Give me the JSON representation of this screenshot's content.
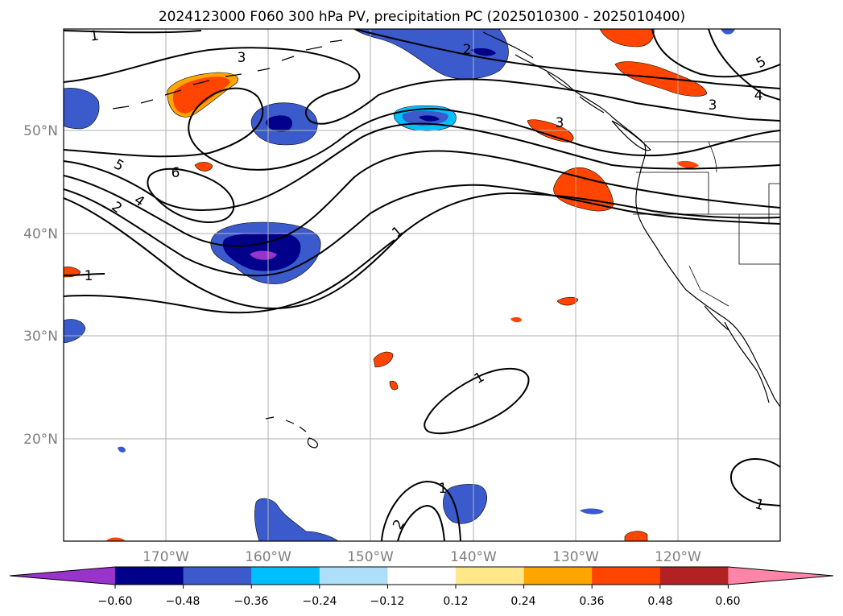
{
  "title": "2024123000 F060 300 hPa PV, precipitation PC (2025010300 - 2025010400)",
  "map": {
    "lon_labels": [
      "170°W",
      "160°W",
      "150°W",
      "140°W",
      "130°W",
      "120°W"
    ],
    "lat_labels": [
      "50°N",
      "40°N",
      "30°N",
      "20°N"
    ],
    "contour_labels": [
      "1",
      "3",
      "2",
      "5",
      "4",
      "3",
      "3",
      "5",
      "6",
      "4",
      "2",
      "1",
      "1",
      "1",
      "1",
      "2",
      "1"
    ],
    "colors": {
      "pv_contour": "#000000",
      "coast": "#000000",
      "grid": "#b0b0b0"
    }
  },
  "colorbar": {
    "colors": [
      "#9933cc",
      "#00008b",
      "#3b5bcc",
      "#00bfff",
      "#ade0f8",
      "#ffffff",
      "#ffe88a",
      "#ffa500",
      "#ff4500",
      "#b22222",
      "#ff85a8"
    ],
    "tick_labels": [
      "−0.60",
      "−0.48",
      "−0.36",
      "−0.24",
      "−0.12",
      "0.12",
      "0.24",
      "0.36",
      "0.48",
      "0.60"
    ]
  }
}
